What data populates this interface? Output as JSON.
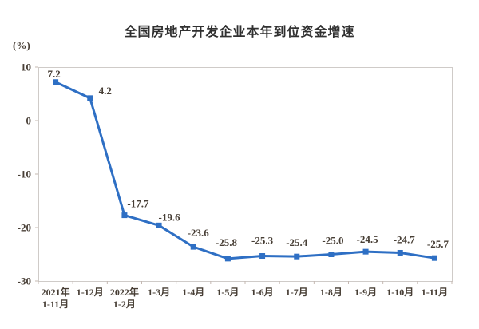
{
  "chart_data": {
    "type": "line",
    "title": "全国房地产开发企业本年到位资金增速",
    "unit_label": "(%)",
    "categories": [
      [
        "2021年",
        "1-11月"
      ],
      [
        "1-12月"
      ],
      [
        "2022年",
        "1-2月"
      ],
      [
        "1-3月"
      ],
      [
        "1-4月"
      ],
      [
        "1-5月"
      ],
      [
        "1-6月"
      ],
      [
        "1-7月"
      ],
      [
        "1-8月"
      ],
      [
        "1-9月"
      ],
      [
        "1-10月"
      ],
      [
        "1-11月"
      ]
    ],
    "values": [
      7.2,
      4.2,
      -17.7,
      -19.6,
      -23.6,
      -25.8,
      -25.3,
      -25.4,
      -25.0,
      -24.5,
      -24.7,
      -25.7
    ],
    "point_labels": [
      "7.2",
      "4.2",
      "-17.7",
      "-19.6",
      "-23.6",
      "-25.8",
      "-25.3",
      "-25.4",
      "-25.0",
      "-24.5",
      "-24.7",
      "-25.7"
    ],
    "y_ticks": [
      "10",
      "0",
      "-10",
      "-20",
      "-30"
    ],
    "ylim": [
      -30,
      10
    ],
    "grid": false,
    "legend": "none",
    "line_color": "#2e6fc4",
    "marker_color": "#2e6fc4",
    "text_color": "#473e35",
    "border_color": "#cfcbc8",
    "tick_color": "#c4b8b2"
  }
}
